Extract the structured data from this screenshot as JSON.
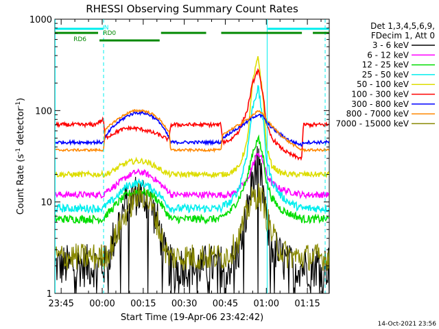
{
  "chart_data": {
    "type": "line",
    "title": "RHESSI Observing Summary Count Rates",
    "xlabel": "Start Time (19-Apr-06 23:42:42)",
    "ylabel": "Count Rate (s⁻¹ detector⁻¹)",
    "ylabel_base": "Count Rate (s",
    "ylabel_mid": " detector",
    "ylabel_end": ")",
    "ylabel_exp": "-1",
    "yscale": "log",
    "ylim": [
      1,
      1000
    ],
    "x_unit": "minutes after 23:45",
    "xlim": [
      -2.3,
      98
    ],
    "x_ticks": [
      {
        "label": "23:45",
        "value": 0
      },
      {
        "label": "00:00",
        "value": 15
      },
      {
        "label": "00:15",
        "value": 30
      },
      {
        "label": "00:30",
        "value": 45
      },
      {
        "label": "00:45",
        "value": 60
      },
      {
        "label": "01:00",
        "value": 75
      },
      {
        "label": "01:15",
        "value": 90
      }
    ],
    "y_ticks": [
      {
        "label": "1",
        "value": 1
      },
      {
        "label": "10",
        "value": 10
      },
      {
        "label": "100",
        "value": 100
      },
      {
        "label": "1000",
        "value": 1000
      }
    ],
    "legend_header": [
      "Det 1,3,4,5,6,9,",
      "FDecim 1, Att 0"
    ],
    "legend_position": "right",
    "footer_timestamp": "14-Oct-2021 23:56",
    "x_sampled": [
      -2.3,
      0,
      4,
      8,
      12,
      15.5,
      16,
      18,
      21,
      24,
      27,
      30,
      33,
      36,
      38,
      39.5,
      40,
      43,
      47,
      51,
      55,
      58.5,
      59,
      62,
      65,
      68,
      70,
      72,
      74,
      75,
      77,
      80,
      83,
      86,
      88,
      88.5,
      92,
      94
    ],
    "series": [
      {
        "name": "3 - 6 keV",
        "color": "#000000",
        "values": [
          2,
          2,
          2,
          2,
          2,
          2,
          2,
          3,
          6,
          10,
          12,
          12,
          9,
          5,
          2.5,
          2,
          2,
          2,
          2,
          2,
          2,
          2,
          2,
          2,
          3,
          8,
          18,
          25,
          12,
          6,
          3.5,
          2.5,
          2,
          2,
          2,
          2,
          2,
          2
        ]
      },
      {
        "name": "6 - 12 keV",
        "color": "#ff00ff",
        "values": [
          12,
          12,
          12,
          12,
          12,
          12,
          13,
          14,
          16,
          19,
          21,
          21,
          19,
          16,
          14,
          13,
          12,
          12,
          12,
          12,
          12,
          12,
          12,
          12,
          14,
          17,
          25,
          35,
          27,
          20,
          16,
          14,
          13,
          12.5,
          12,
          12,
          12,
          12
        ]
      },
      {
        "name": "12 - 25 keV",
        "color": "#00dd00",
        "values": [
          6.5,
          6.5,
          6.5,
          6.5,
          6.5,
          6.5,
          7,
          8,
          10,
          12,
          13,
          13,
          12,
          10,
          8,
          7,
          6.5,
          6.5,
          6.5,
          6.5,
          6.5,
          6.5,
          7,
          8,
          11,
          18,
          35,
          50,
          30,
          17,
          11,
          8.5,
          7.5,
          7,
          6.5,
          6.5,
          6.5,
          6.5
        ]
      },
      {
        "name": "25 - 50 keV",
        "color": "#00eeee",
        "values": [
          8.5,
          8.5,
          8.5,
          8.5,
          8.5,
          8.5,
          9,
          10,
          12,
          15,
          16,
          16,
          14,
          12,
          10,
          9,
          8.5,
          8.5,
          8.5,
          8.5,
          8.5,
          8.5,
          9,
          10,
          14,
          35,
          110,
          180,
          70,
          30,
          17,
          12,
          10,
          9,
          8.5,
          8.5,
          8.5,
          8.5
        ]
      },
      {
        "name": "50 - 100 keV",
        "color": "#dddd00",
        "values": [
          20,
          20,
          20,
          20,
          20,
          20,
          20,
          21,
          24,
          27,
          28,
          28,
          26,
          23,
          21,
          20,
          20,
          20,
          20,
          20,
          20,
          20,
          20,
          21,
          24,
          45,
          200,
          400,
          120,
          40,
          25,
          21,
          20,
          20,
          20,
          20,
          20,
          20
        ]
      },
      {
        "name": "100 - 300 keV",
        "color": "#ff0000",
        "values": [
          70,
          70,
          70,
          70,
          70,
          80,
          50,
          54,
          60,
          64,
          64,
          62,
          58,
          54,
          50,
          48,
          70,
          70,
          70,
          70,
          70,
          70,
          45,
          48,
          60,
          100,
          200,
          280,
          140,
          70,
          50,
          40,
          34,
          31,
          30,
          70,
          70,
          70
        ]
      },
      {
        "name": "300 - 800 keV",
        "color": "#0000ff",
        "values": [
          45,
          45,
          45,
          45,
          45,
          45,
          50,
          62,
          75,
          87,
          95,
          95,
          88,
          75,
          60,
          50,
          45,
          45,
          45,
          45,
          45,
          45,
          50,
          58,
          65,
          75,
          85,
          90,
          85,
          75,
          65,
          55,
          48,
          44,
          42,
          45,
          45,
          45
        ]
      },
      {
        "name": "800 - 7000 keV",
        "color": "#ff8800",
        "values": [
          37,
          37,
          37,
          37,
          37,
          37,
          60,
          70,
          82,
          93,
          100,
          100,
          93,
          80,
          67,
          58,
          37,
          37,
          37,
          37,
          37,
          37,
          55,
          62,
          70,
          80,
          90,
          98,
          92,
          80,
          68,
          55,
          46,
          40,
          37,
          37,
          37,
          37
        ]
      },
      {
        "name": "7000 - 15000 keV",
        "color": "#888800",
        "values": [
          2.5,
          2.5,
          2.5,
          2.5,
          2.5,
          2.5,
          2.6,
          3,
          5,
          8,
          11,
          12,
          9,
          5,
          3,
          2.5,
          2.5,
          2.5,
          2.5,
          2.5,
          2.5,
          2.5,
          2.5,
          2.8,
          4,
          8,
          11,
          12,
          10,
          7,
          4.5,
          3,
          2.6,
          2.5,
          2.5,
          2.5,
          2.5,
          2.5
        ]
      }
    ],
    "state_bars": [
      {
        "label": "N",
        "color": "#00eeee",
        "segments": [
          [
            -2.3,
            15.5
          ],
          [
            75.5,
            98
          ]
        ]
      },
      {
        "label": "RD0",
        "color": "#008800",
        "segments": [
          [
            -2.3,
            13.5
          ],
          [
            36.5,
            53
          ],
          [
            58.5,
            88
          ],
          [
            92,
            98
          ]
        ]
      },
      {
        "label": "RD6",
        "color": "#008800",
        "segments": [
          [
            14,
            36
          ]
        ]
      }
    ],
    "vertical_markers": [
      {
        "x": -2.2,
        "style": "solid",
        "color": "#00eeee"
      },
      {
        "x": 15.5,
        "style": "dashed",
        "color": "#00eeee"
      },
      {
        "x": 75.3,
        "style": "solid",
        "color": "#00eeee"
      },
      {
        "x": 96.5,
        "style": "dashed",
        "color": "#00eeee"
      }
    ]
  }
}
